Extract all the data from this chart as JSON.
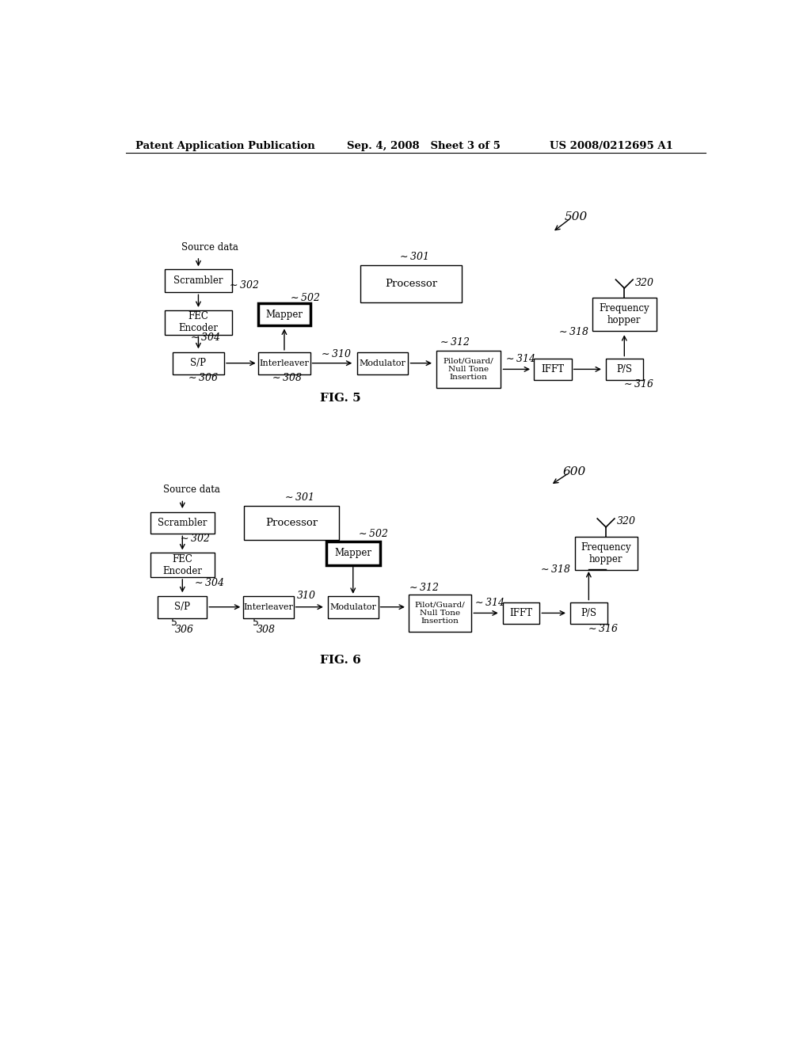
{
  "header_left": "Patent Application Publication",
  "header_mid": "Sep. 4, 2008   Sheet 3 of 5",
  "header_right": "US 2008/0212695 A1",
  "background_color": "#ffffff",
  "fig5_label": "FIG. 5",
  "fig6_label": "FIG. 6",
  "fig5_ref": "500",
  "fig6_ref": "600"
}
